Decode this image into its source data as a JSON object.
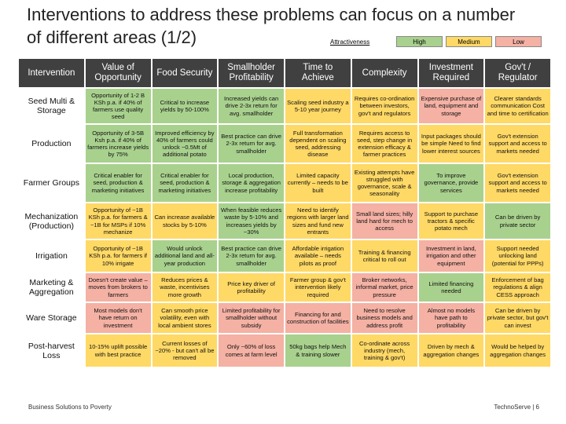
{
  "header": {
    "title": "Interventions to address these problems can focus on a number of different areas (1/2)"
  },
  "legend": {
    "title": "Attractiveness",
    "items": [
      {
        "label": "High",
        "color": "#a9d18e"
      },
      {
        "label": "Medium",
        "color": "#ffd966"
      },
      {
        "label": "Low",
        "color": "#f4b1a4"
      }
    ]
  },
  "table": {
    "header": [
      "Intervention",
      "Value of Opportunity",
      "Food Security",
      "Smallholder Profitability",
      "Time to Achieve",
      "Complexity",
      "Investment Required",
      "Gov't / Regulator"
    ],
    "rows": [
      {
        "label": "Seed Multi & Storage",
        "colors": [
          "#a9d18e",
          "#a9d18e",
          "#a9d18e",
          "#ffd966",
          "#ffd966",
          "#f4b1a4",
          "#ffd966"
        ],
        "cells": [
          "Opportunity of 1-2 B KSh p.a. if 40% of farmers use quality seed",
          "Critical to increase yields by 50-100%",
          "Increased yields can drive 2-3x return for avg. smallholder",
          "Scaling seed industry a 5-10 year journey",
          "Requires co-ordination between investors, gov't and regulators",
          "Expensive purchase of land, equipment and storage",
          "Clearer standards communication Cost and time to certification"
        ]
      },
      {
        "label": "Production",
        "colors": [
          "#a9d18e",
          "#a9d18e",
          "#a9d18e",
          "#ffd966",
          "#ffd966",
          "#ffd966",
          "#ffd966"
        ],
        "cells": [
          "Opportunity of 3-5B Ksh p.a. if 40% of farmers increase yields by 75%",
          "Improved efficiency by 40% of farmers could unlock ~0.5Mt of additional potato",
          "Best practice can drive 2-3x return for avg. smallholder",
          "Full transformation dependent on scaling seed, addressing disease",
          "Requires access to seed, step change in extension efficacy & farmer practices",
          "Input packages should be simple Need to find lower interest sources",
          "Gov't extension support and access to markets needed"
        ]
      },
      {
        "label": "Farmer Groups",
        "colors": [
          "#a9d18e",
          "#a9d18e",
          "#a9d18e",
          "#ffd966",
          "#ffd966",
          "#a9d18e",
          "#ffd966"
        ],
        "cells": [
          "Critical enabler for seed, production & marketing initiatives",
          "Critical enabler for seed, production & marketing initiatives",
          "Local production, storage & aggregation increase profitability",
          "Limited capacity currently – needs to be built",
          "Existing attempts have struggled with governance, scale & seasonality",
          "To improve governance, provide services",
          "Gov't extension support and access to markets needed"
        ]
      },
      {
        "label": "Mechanization (Production)",
        "colors": [
          "#ffd966",
          "#ffd966",
          "#a9d18e",
          "#ffd966",
          "#f4b1a4",
          "#ffd966",
          "#a9d18e"
        ],
        "cells": [
          "Opportunity of ~1B KSh p.a. for farmers & ~1B for MSPs if 10% mechanize",
          "Can increase available stocks by 5-10%",
          "When feasible reduces waste by 5-10% and increases yields by ~30%",
          "Need to identify regions with larger land sizes and fund new entrants",
          "Small land sizes; hilly land hard for mech to access",
          "Support to purchase tractors & specific potato mech",
          "Can be driven by private sector"
        ]
      },
      {
        "label": "Irrigation",
        "colors": [
          "#ffd966",
          "#a9d18e",
          "#a9d18e",
          "#ffd966",
          "#ffd966",
          "#f4b1a4",
          "#ffd966"
        ],
        "cells": [
          "Opportunity of ~1B KSh p.a. for farmers if 10% irrigate",
          "Would unlock additional land and all-year production",
          "Best practice can drive 2-3x return for avg. smallholder",
          "Affordable irrigation available – needs pilots as proof",
          "Training & financing critical to roll out",
          "Investment in land, irrigation and other equipment",
          "Support needed unlocking land (potential for PPPs)"
        ]
      },
      {
        "label": "Marketing & Aggregation",
        "colors": [
          "#f4b1a4",
          "#ffd966",
          "#ffd966",
          "#ffd966",
          "#f4b1a4",
          "#a9d18e",
          "#ffd966"
        ],
        "cells": [
          "Doesn't create value – moves from brokers to farmers",
          "Reduces prices & waste, incentivises more growth",
          "Price key driver of profitability",
          "Farmer group & gov't intervention likely required",
          "Broker networks, informal market, price pressure",
          "Limited financing needed",
          "Enforcement of bag regulations & align CESS approach"
        ]
      },
      {
        "label": "Ware Storage",
        "colors": [
          "#f4b1a4",
          "#ffd966",
          "#f4b1a4",
          "#f4b1a4",
          "#f4b1a4",
          "#f4b1a4",
          "#ffd966"
        ],
        "cells": [
          "Most models don't have return on investment",
          "Can smooth price volatility, even with local ambient stores",
          "Limited profitability for smallholder without subsidy",
          "Financing for and construction of facilities",
          "Need to resolve business models and address profit",
          "Almost no models have path to profitability",
          "Can be driven by private sector, but gov't can invest"
        ]
      },
      {
        "label": "Post-harvest Loss",
        "colors": [
          "#ffd966",
          "#ffd966",
          "#f4b1a4",
          "#a9d18e",
          "#ffd966",
          "#ffd966",
          "#ffd966"
        ],
        "cells": [
          "10-15% uplift possible with best practice",
          "Current losses of ~20% - but can't all be removed",
          "Only ~60% of loss comes at farm level",
          "50kg bags help Mech & training slower",
          "Co-ordinate across industry (mech, training & gov't)",
          "Driven by mech & aggregation changes",
          "Would be helped by aggregation changes"
        ]
      }
    ]
  },
  "footer": {
    "left": "Business Solutions to Poverty",
    "right": "TechnoServe | 6"
  }
}
